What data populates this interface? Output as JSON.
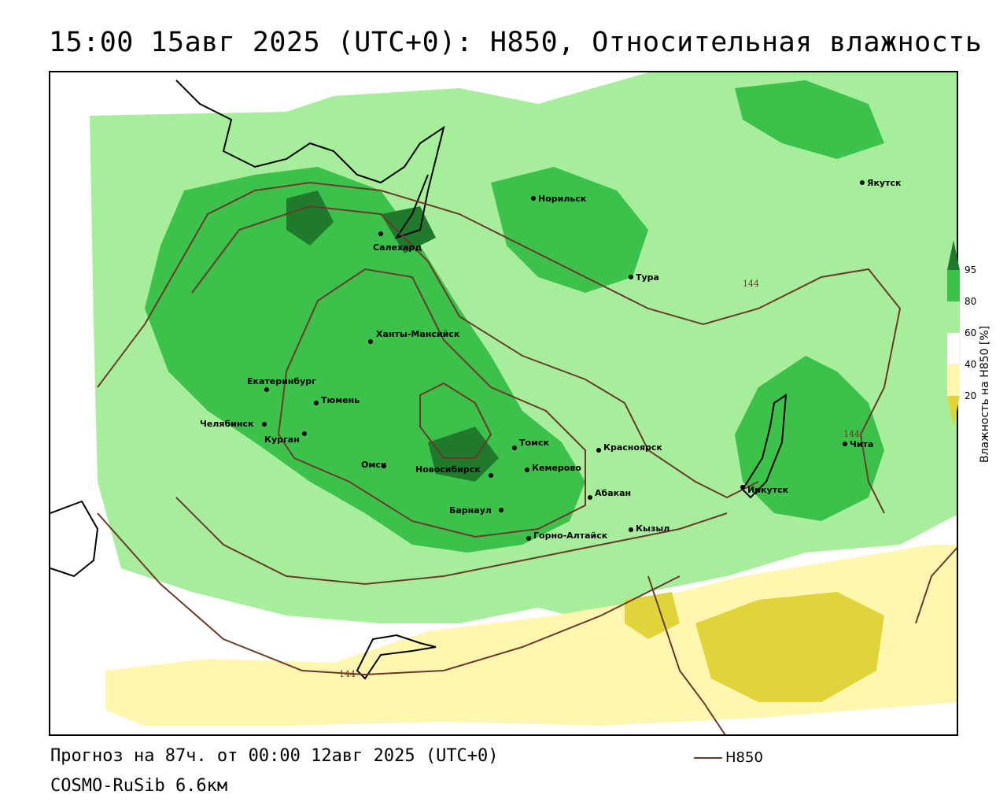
{
  "title": "15:00 15авг 2025 (UTC+0): H850, Относительная влажность",
  "footer": {
    "forecast": "Прогноз на 87ч. от 00:00 12авг 2025 (UTC+0)",
    "model": "COSMO-RuSib 6.6км"
  },
  "legend": {
    "line_label": "H850",
    "line_color": "#6b3a2a",
    "colorbar_title": "Влажность на H850 [%]",
    "ticks": [
      "95",
      "80",
      "60",
      "40",
      "20"
    ],
    "colors": {
      "above_95": "#1f7a2e",
      "c80_95": "#3cc24a",
      "c60_80": "#a6ee9c",
      "c40_60": "#ffffff",
      "c20_40": "#fff6b0",
      "below_20": "#e0d43a"
    }
  },
  "isolines": {
    "label_1": "144",
    "label_2": "144",
    "label_3": "144"
  },
  "cities": {
    "norilsk": "Норильск",
    "yakutsk": "Якутск",
    "salekhard": "Салехард",
    "tura": "Тура",
    "khanty": "Ханты-Мансийск",
    "ekaterinburg": "Екатеринбург",
    "tyumen": "Тюмень",
    "chelyabinsk": "Челябинск",
    "kurgan": "Курган",
    "omsk": "Омск",
    "novosibirsk": "Новосибирск",
    "tomsk": "Томск",
    "kemerovo": "Кемерово",
    "krasnoyarsk": "Красноярск",
    "abakan": "Абакан",
    "barnaul": "Барнаул",
    "gorno": "Горно-Алтайск",
    "kyzyl": "Кызыл",
    "irkutsk": "Иркутск",
    "chita": "Чита"
  }
}
